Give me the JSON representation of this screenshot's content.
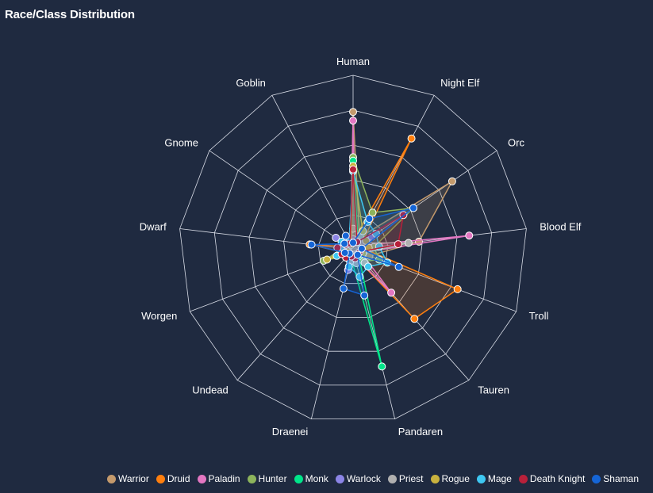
{
  "title": "Race/Class Distribution",
  "chart_data": {
    "type": "radar",
    "title": "Race/Class Distribution",
    "categories": [
      "Human",
      "Night Elf",
      "Orc",
      "Blood Elf",
      "Troll",
      "Tauren",
      "Pandaren",
      "Draenei",
      "Undead",
      "Worgen",
      "Dwarf",
      "Gnome",
      "Goblin"
    ],
    "rmax": 10,
    "grid_levels": 5,
    "legend_position": "bottom-right",
    "series": [
      {
        "name": "Warrior",
        "color": "#c49a6c",
        "values": [
          7.9,
          0.8,
          6.9,
          3.8,
          1.0,
          0.6,
          0.5,
          0.4,
          0.3,
          0.5,
          0.5,
          0.4,
          0.3
        ]
      },
      {
        "name": "Druid",
        "color": "#ff7f0e",
        "values": [
          0.5,
          7.2,
          0.6,
          0.6,
          6.4,
          5.3,
          0.4,
          0.3,
          0.3,
          0.5,
          2.5,
          0.3,
          0.3
        ]
      },
      {
        "name": "Paladin",
        "color": "#e377c2",
        "values": [
          7.4,
          0.3,
          0.4,
          6.7,
          0.5,
          3.3,
          0.4,
          0.5,
          0.3,
          0.3,
          0.4,
          0.3,
          0.3
        ]
      },
      {
        "name": "Hunter",
        "color": "#8db45c",
        "values": [
          5.3,
          2.4,
          4.2,
          1.2,
          1.6,
          0.9,
          0.7,
          0.5,
          0.4,
          1.8,
          0.6,
          0.5,
          0.4
        ]
      },
      {
        "name": "Monk",
        "color": "#00e58a",
        "values": [
          5.1,
          0.6,
          0.5,
          0.5,
          0.6,
          0.5,
          6.9,
          0.5,
          0.3,
          0.4,
          0.5,
          0.3,
          0.3
        ]
      },
      {
        "name": "Warlock",
        "color": "#8c85e6",
        "values": [
          0.6,
          0.5,
          1.3,
          0.8,
          0.4,
          0.3,
          0.3,
          1.2,
          0.6,
          0.5,
          0.6,
          1.2,
          0.4
        ]
      },
      {
        "name": "Priest",
        "color": "#b0b0b0",
        "values": [
          1.2,
          0.9,
          0.7,
          3.2,
          0.6,
          1.0,
          0.8,
          0.7,
          0.6,
          0.7,
          0.6,
          0.5,
          0.4
        ]
      },
      {
        "name": "Rogue",
        "color": "#c9b23e",
        "values": [
          4.8,
          1.2,
          0.9,
          0.9,
          0.6,
          0.4,
          0.4,
          0.3,
          0.3,
          1.6,
          0.4,
          0.3,
          0.3
        ]
      },
      {
        "name": "Mage",
        "color": "#3ec8f2",
        "values": [
          4.5,
          1.8,
          1.6,
          1.5,
          2.1,
          1.3,
          1.6,
          1.0,
          0.6,
          1.0,
          0.7,
          0.8,
          0.5
        ]
      },
      {
        "name": "Death Knight",
        "color": "#b8203a",
        "values": [
          4.6,
          0.5,
          3.5,
          2.6,
          0.4,
          0.4,
          0.5,
          0.4,
          0.6,
          0.7,
          0.9,
          0.5,
          0.4
        ]
      },
      {
        "name": "Shaman",
        "color": "#1565d6",
        "values": [
          0.4,
          2.0,
          4.2,
          0.5,
          2.8,
          0.4,
          2.7,
          2.3,
          0.3,
          0.5,
          2.4,
          0.6,
          0.9
        ]
      }
    ]
  }
}
